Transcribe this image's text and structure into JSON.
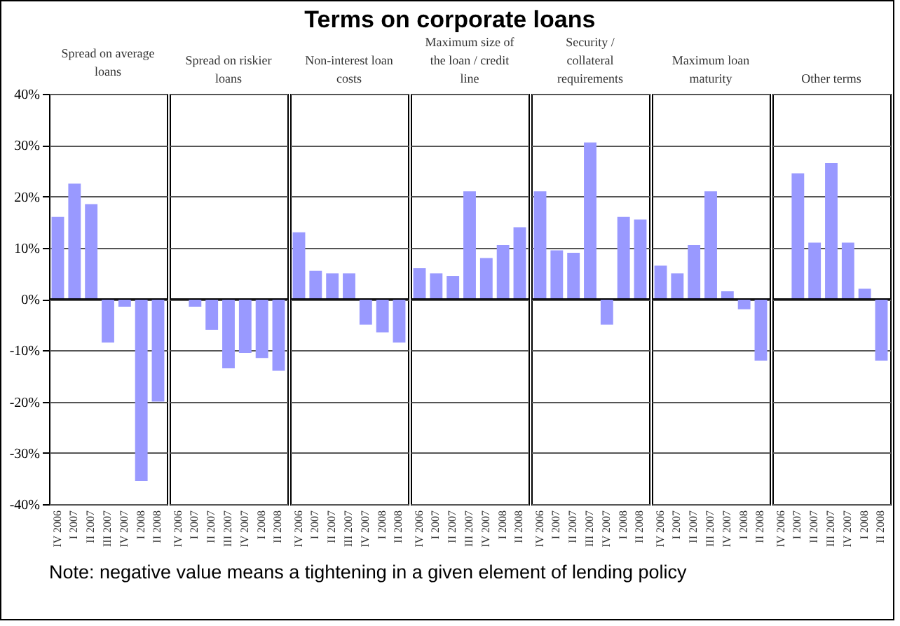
{
  "chart_data": [
    {
      "type": "other",
      "title": "Terms on corporate loans",
      "annotations": [
        "Note: negative value means a tightening in a given element of lending policy"
      ]
    },
    {
      "type": "bar",
      "title": "Spread on average loans",
      "categories": [
        "IV 2006",
        "I 2007",
        "II 2007",
        "III 2007",
        "IV 2007",
        "I 2008",
        "II 2008"
      ],
      "values": [
        16,
        22.5,
        18.5,
        -8.5,
        -1.5,
        -35.5,
        -20
      ],
      "color": "#9999ff",
      "ylim": [
        -40,
        40
      ],
      "yticks": [
        {
          "value": -40,
          "label": "-40%"
        },
        {
          "value": -30,
          "label": "-30%"
        },
        {
          "value": -20,
          "label": "-20%"
        },
        {
          "value": -10,
          "label": "-10%"
        },
        {
          "value": 0,
          "label": "0%"
        },
        {
          "value": 10,
          "label": "10%"
        },
        {
          "value": 20,
          "label": "20%"
        },
        {
          "value": 30,
          "label": "30%"
        },
        {
          "value": 40,
          "label": "40%"
        }
      ],
      "grid": "y"
    },
    {
      "type": "bar",
      "title": "Spread on riskier loans",
      "categories": [
        "IV 2006",
        "I 2007",
        "II 2007",
        "III 2007",
        "IV 2007",
        "I 2008",
        "II 2008"
      ],
      "values": [
        0,
        -1.5,
        -6,
        -13.5,
        -10.5,
        -11.5,
        -14
      ],
      "color": "#9999ff",
      "ylim": [
        -40,
        40
      ],
      "yticks": [
        -40,
        -30,
        -20,
        -10,
        0,
        10,
        20,
        30,
        40
      ],
      "grid": "y",
      "tick_labels": "x"
    },
    {
      "type": "bar",
      "title": "Non-interest loan costs",
      "categories": [
        "IV 2006",
        "I 2007",
        "II 2007",
        "III 2007",
        "IV 2007",
        "I 2008",
        "II 2008"
      ],
      "values": [
        13,
        5.5,
        5,
        5,
        -5,
        -6.5,
        -8.5
      ],
      "color": "#9999ff",
      "ylim": [
        -40,
        40
      ],
      "yticks": [
        -40,
        -30,
        -20,
        -10,
        0,
        10,
        20,
        30,
        40
      ],
      "grid": "y",
      "tick_labels": "x"
    },
    {
      "type": "bar",
      "title": "Maximum size of the loan / credit line",
      "categories": [
        "IV 2006",
        "I 2007",
        "II 2007",
        "III 2007",
        "IV 2007",
        "I 2008",
        "II 2008"
      ],
      "values": [
        6,
        5,
        4.5,
        21,
        8,
        10.5,
        14
      ],
      "color": "#9999ff",
      "ylim": [
        -40,
        40
      ],
      "yticks": [
        -40,
        -30,
        -20,
        -10,
        0,
        10,
        20,
        30,
        40
      ],
      "grid": "y",
      "tick_labels": "x"
    },
    {
      "type": "bar",
      "title": "Security / collateral requirements",
      "categories": [
        "IV 2006",
        "I 2007",
        "II 2007",
        "III 2007",
        "IV 2007",
        "I 2008",
        "II 2008"
      ],
      "values": [
        21,
        9.5,
        9,
        30.5,
        -5,
        16,
        15.5
      ],
      "color": "#9999ff",
      "ylim": [
        -40,
        40
      ],
      "yticks": [
        -40,
        -30,
        -20,
        -10,
        0,
        10,
        20,
        30,
        40
      ],
      "grid": "y",
      "tick_labels": "x"
    },
    {
      "type": "bar",
      "title": "Maximum loan maturity",
      "categories": [
        "IV 2006",
        "I 2007",
        "II 2007",
        "III 2007",
        "IV 2007",
        "I 2008",
        "II 2008"
      ],
      "values": [
        6.5,
        5,
        10.5,
        21,
        1.5,
        -2,
        -12
      ],
      "color": "#9999ff",
      "ylim": [
        -40,
        40
      ],
      "yticks": [
        -40,
        -30,
        -20,
        -10,
        0,
        10,
        20,
        30,
        40
      ],
      "grid": "y",
      "tick_labels": "x"
    },
    {
      "type": "bar",
      "title": "Other terms",
      "categories": [
        "IV 2006",
        "I 2007",
        "II 2007",
        "III 2007",
        "IV 2007",
        "I 2008",
        "II 2008"
      ],
      "values": [
        0,
        24.5,
        11,
        26.5,
        11,
        2,
        -12
      ],
      "color": "#9999ff",
      "ylim": [
        -40,
        40
      ],
      "yticks": [
        -40,
        -30,
        -20,
        -10,
        0,
        10,
        20,
        30,
        40
      ],
      "grid": "y",
      "tick_labels": "x"
    }
  ]
}
